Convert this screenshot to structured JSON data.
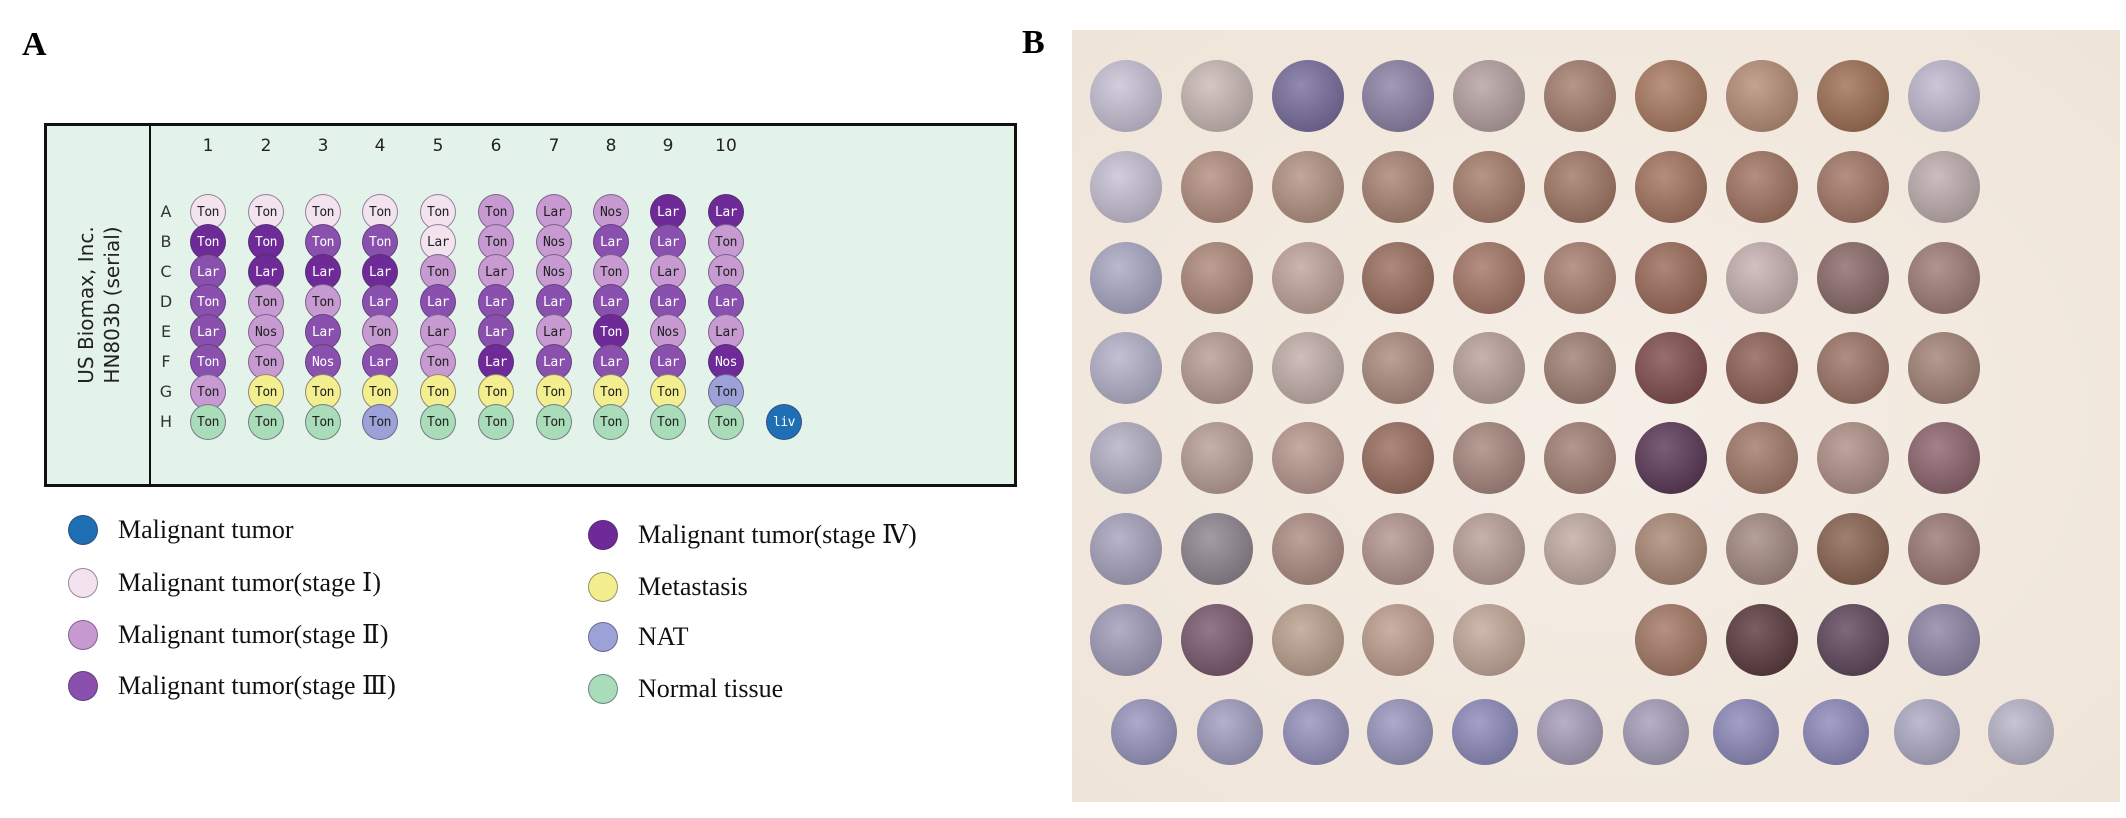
{
  "panels": {
    "a_label": "A",
    "b_label": "B"
  },
  "array_map": {
    "vendor_line1": "US Biomax, Inc.",
    "vendor_line2": "HN803b (serial)",
    "columns": [
      "1",
      "2",
      "3",
      "4",
      "5",
      "6",
      "7",
      "8",
      "9",
      "10"
    ],
    "rows": [
      {
        "letter": "A",
        "spots": [
          [
            "Ton",
            "s1"
          ],
          [
            "Ton",
            "s1"
          ],
          [
            "Ton",
            "s1"
          ],
          [
            "Ton",
            "s1"
          ],
          [
            "Ton",
            "s1"
          ],
          [
            "Ton",
            "s2"
          ],
          [
            "Lar",
            "s2"
          ],
          [
            "Nos",
            "s2"
          ],
          [
            "Lar",
            "s4"
          ],
          [
            "Lar",
            "s4"
          ]
        ]
      },
      {
        "letter": "B",
        "spots": [
          [
            "Ton",
            "s4"
          ],
          [
            "Ton",
            "s4"
          ],
          [
            "Ton",
            "s3"
          ],
          [
            "Ton",
            "s3"
          ],
          [
            "Lar",
            "s1"
          ],
          [
            "Ton",
            "s2"
          ],
          [
            "Nos",
            "s2"
          ],
          [
            "Lar",
            "s3"
          ],
          [
            "Lar",
            "s3"
          ],
          [
            "Ton",
            "s2"
          ]
        ]
      },
      {
        "letter": "C",
        "spots": [
          [
            "Lar",
            "s3"
          ],
          [
            "Lar",
            "s4"
          ],
          [
            "Lar",
            "s4"
          ],
          [
            "Lar",
            "s4"
          ],
          [
            "Ton",
            "s2"
          ],
          [
            "Lar",
            "s2"
          ],
          [
            "Nos",
            "s2"
          ],
          [
            "Ton",
            "s2"
          ],
          [
            "Lar",
            "s2"
          ],
          [
            "Ton",
            "s2"
          ]
        ]
      },
      {
        "letter": "D",
        "spots": [
          [
            "Ton",
            "s3"
          ],
          [
            "Ton",
            "s2"
          ],
          [
            "Ton",
            "s2"
          ],
          [
            "Lar",
            "s3"
          ],
          [
            "Lar",
            "s3"
          ],
          [
            "Lar",
            "s3"
          ],
          [
            "Lar",
            "s3"
          ],
          [
            "Lar",
            "s3"
          ],
          [
            "Lar",
            "s3"
          ],
          [
            "Lar",
            "s3"
          ]
        ]
      },
      {
        "letter": "E",
        "spots": [
          [
            "Lar",
            "s3"
          ],
          [
            "Nos",
            "s2"
          ],
          [
            "Lar",
            "s3"
          ],
          [
            "Ton",
            "s2"
          ],
          [
            "Lar",
            "s2"
          ],
          [
            "Lar",
            "s3"
          ],
          [
            "Lar",
            "s2"
          ],
          [
            "Ton",
            "s4"
          ],
          [
            "Nos",
            "s2"
          ],
          [
            "Lar",
            "s2"
          ]
        ]
      },
      {
        "letter": "F",
        "spots": [
          [
            "Ton",
            "s3"
          ],
          [
            "Ton",
            "s2"
          ],
          [
            "Nos",
            "s3"
          ],
          [
            "Lar",
            "s3"
          ],
          [
            "Ton",
            "s2"
          ],
          [
            "Lar",
            "s4"
          ],
          [
            "Lar",
            "s3"
          ],
          [
            "Lar",
            "s3"
          ],
          [
            "Lar",
            "s3"
          ],
          [
            "Nos",
            "s4"
          ]
        ]
      },
      {
        "letter": "G",
        "spots": [
          [
            "Ton",
            "s2"
          ],
          [
            "Ton",
            "met"
          ],
          [
            "Ton",
            "met"
          ],
          [
            "Ton",
            "met"
          ],
          [
            "Ton",
            "met"
          ],
          [
            "Ton",
            "met"
          ],
          [
            "Ton",
            "met"
          ],
          [
            "Ton",
            "met"
          ],
          [
            "Ton",
            "met"
          ],
          [
            "Ton",
            "nat"
          ]
        ]
      },
      {
        "letter": "H",
        "spots": [
          [
            "Ton",
            "norm"
          ],
          [
            "Ton",
            "norm"
          ],
          [
            "Ton",
            "norm"
          ],
          [
            "Ton",
            "nat"
          ],
          [
            "Ton",
            "norm"
          ],
          [
            "Ton",
            "norm"
          ],
          [
            "Ton",
            "norm"
          ],
          [
            "Ton",
            "norm"
          ],
          [
            "Ton",
            "norm"
          ],
          [
            "Ton",
            "norm"
          ],
          [
            "liv",
            "mal"
          ]
        ]
      }
    ]
  },
  "legend": [
    {
      "label": "Malignant tumor",
      "color_key": "mal"
    },
    {
      "label": "Malignant tumor(stage Ⅰ)",
      "color_key": "s1"
    },
    {
      "label": "Malignant tumor(stage Ⅱ)",
      "color_key": "s2"
    },
    {
      "label": "Malignant tumor(stage Ⅲ)",
      "color_key": "s3"
    },
    {
      "label": "Malignant tumor(stage Ⅳ)",
      "color_key": "s4"
    },
    {
      "label": "Metastasis",
      "color_key": "met"
    },
    {
      "label": "NAT",
      "color_key": "nat"
    },
    {
      "label": "Normal tissue",
      "color_key": "norm"
    }
  ],
  "colors": {
    "mal": {
      "fill": "#1f6fb5",
      "text": "#ffffff"
    },
    "s1": {
      "fill": "#f3e3ef",
      "text": "#222222"
    },
    "s2": {
      "fill": "#c79ad2",
      "text": "#222222"
    },
    "s3": {
      "fill": "#8a50ae",
      "text": "#ffffff"
    },
    "s4": {
      "fill": "#6e2a97",
      "text": "#ffffff"
    },
    "met": {
      "fill": "#f3ee8e",
      "text": "#222222"
    },
    "nat": {
      "fill": "#9ca2d8",
      "text": "#222222"
    },
    "norm": {
      "fill": "#a9dcb8",
      "text": "#222222"
    }
  },
  "micrograph": {
    "stain_tones": [
      [
        "#c9c3d6",
        "#cbbab6",
        "#7a6fa0",
        "#8d83a6",
        "#b7a2a2",
        "#a77f70",
        "#ab7b62",
        "#b88f78",
        "#9f7155",
        "#c1bad1"
      ],
      [
        "#c7c2d4",
        "#b38f80",
        "#b49384",
        "#a98474",
        "#a77e6c",
        "#a27866",
        "#a47561",
        "#a37663",
        "#a37866",
        "#c0aeb0"
      ],
      [
        "#aba9c4",
        "#ae8a7b",
        "#c1a59a",
        "#9c6f60",
        "#a57767",
        "#a98070",
        "#9c6c5b",
        "#c9b3b4",
        "#8c6b6b",
        "#a07d76"
      ],
      [
        "#b5b3c9",
        "#b99d92",
        "#c4b0aa",
        "#ad8c80",
        "#bba39b",
        "#a18075",
        "#814f4e",
        "#8f6258",
        "#9d7467",
        "#a58479"
      ],
      [
        "#b5b1c7",
        "#b9a096",
        "#b9998f",
        "#9a6e60",
        "#a8887e",
        "#a48177",
        "#5c3a58",
        "#a37b6b",
        "#b09188",
        "#8e6670"
      ],
      [
        "#a8a4bf",
        "#8f8691",
        "#ae8e84",
        "#b4968f",
        "#baa199",
        "#c3aca3",
        "#ab8976",
        "#a58b82",
        "#8b6452",
        "#9b7a76"
      ],
      [
        "#a29db9",
        "#7a5a6e",
        "#bba190",
        "#bfa090",
        "#c4a89a",
        null,
        "#a57966",
        "#5c3b40",
        "#60485d",
        "#8f86a7"
      ],
      [
        "#9a97c0",
        "#a29fc1",
        "#9793bf",
        "#9a97bf",
        "#8f8cbb",
        "#a79eb9",
        "#a69fbb",
        "#8f8bbb",
        "#8f8bbb",
        "#b0adc6",
        "#bab7cc"
      ]
    ]
  }
}
